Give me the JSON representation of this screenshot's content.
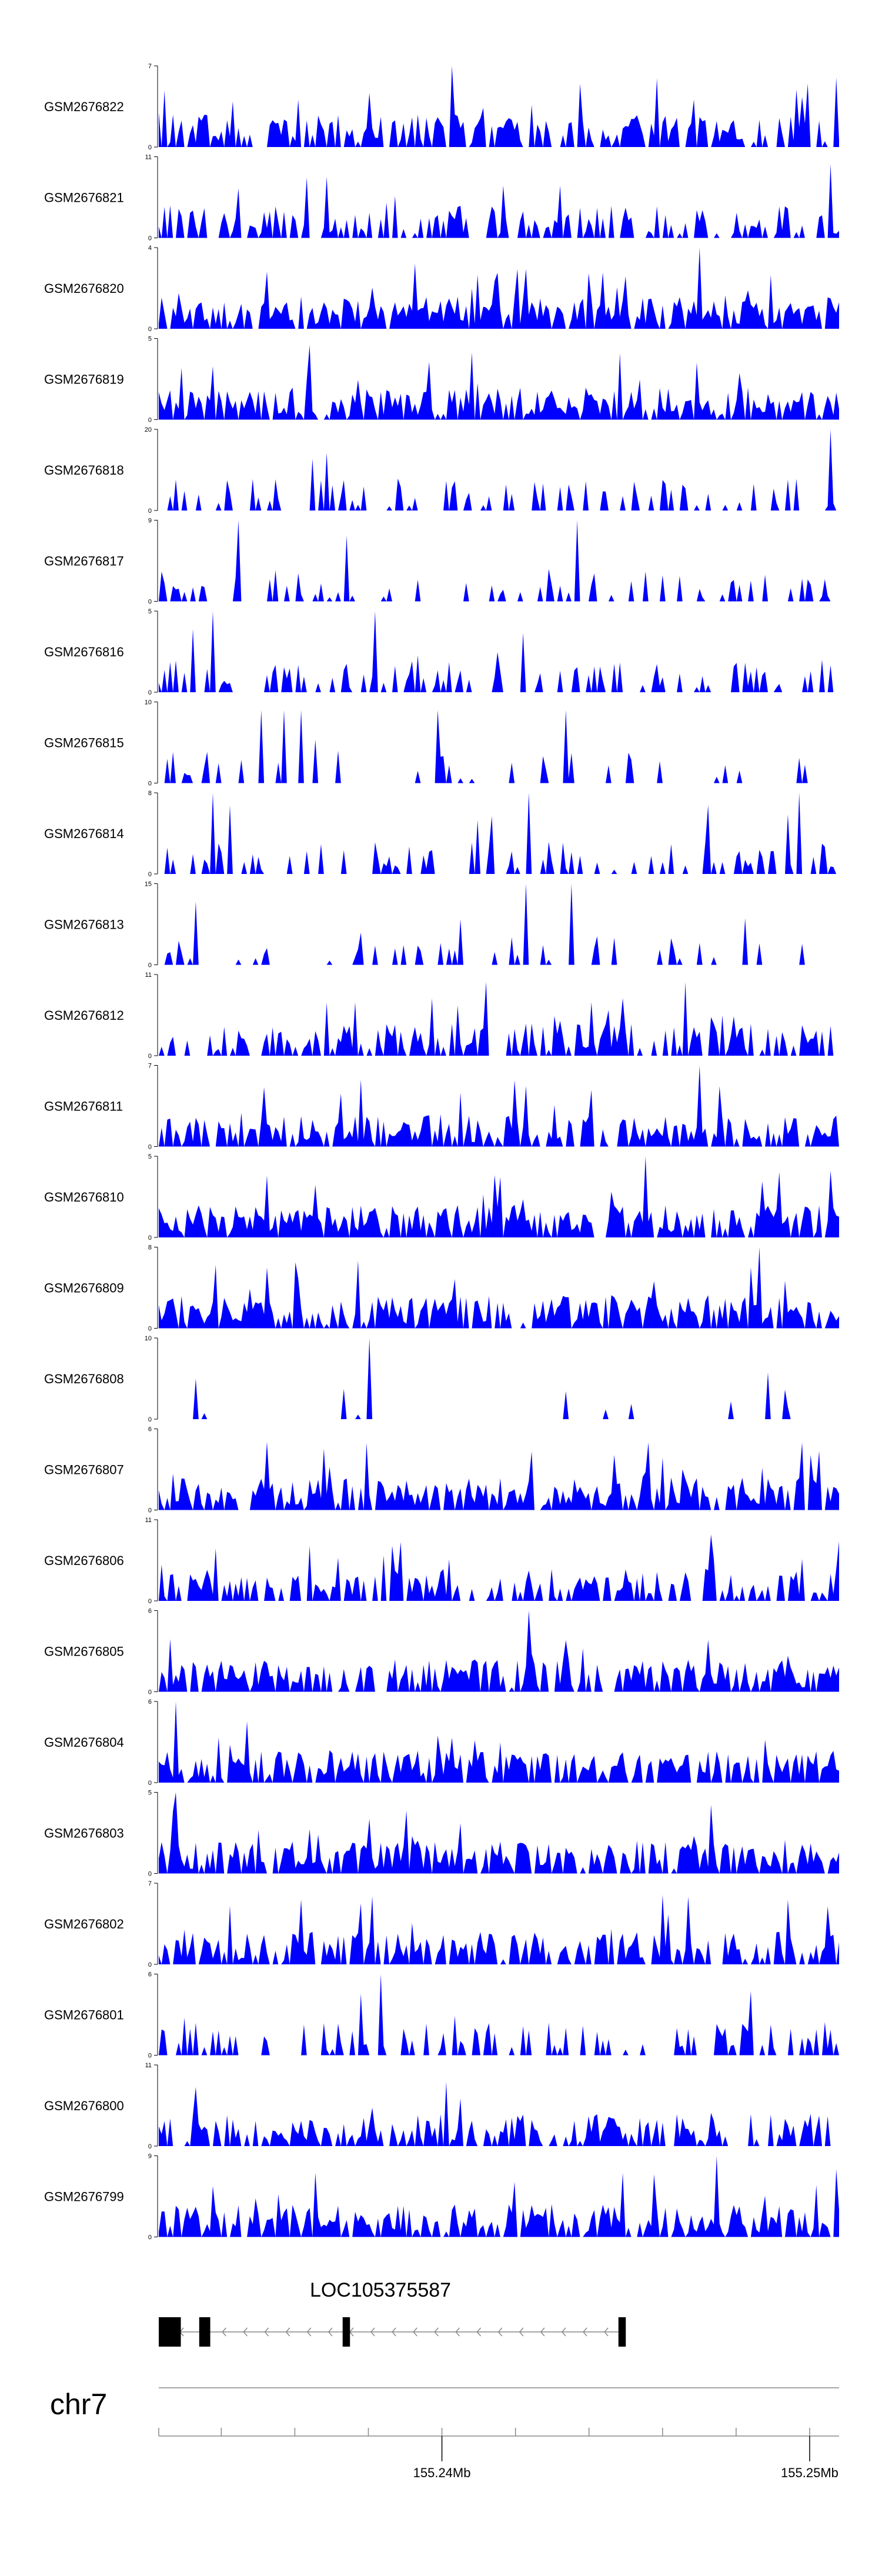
{
  "chart_data": {
    "type": "area",
    "fill_color": "#0000ff",
    "x_range_mb": [
      155.2323,
      155.2508
    ],
    "tracks": [
      {
        "name": "GSM2676822",
        "ylim": [
          0,
          7
        ],
        "seed": 22,
        "density": 0.62,
        "peaks": [
          [
            155.2403,
            7
          ],
          [
            155.2507,
            6
          ]
        ]
      },
      {
        "name": "GSM2676821",
        "ylim": [
          0,
          11
        ],
        "seed": 21,
        "density": 0.55,
        "peaks": [
          [
            155.2506,
            10
          ]
        ]
      },
      {
        "name": "GSM2676820",
        "ylim": [
          0,
          4
        ],
        "seed": 20,
        "density": 0.85,
        "peaks": [
          [
            155.247,
            4
          ]
        ]
      },
      {
        "name": "GSM2676819",
        "ylim": [
          0,
          5
        ],
        "seed": 19,
        "density": 0.8,
        "peaks": [
          [
            155.2364,
            4.6
          ]
        ]
      },
      {
        "name": "GSM2676818",
        "ylim": [
          0,
          20
        ],
        "seed": 18,
        "density": 0.28,
        "peaks": [
          [
            155.2506,
            20
          ]
        ]
      },
      {
        "name": "GSM2676817",
        "ylim": [
          0,
          9
        ],
        "seed": 17,
        "density": 0.22,
        "peaks": [
          [
            155.2345,
            9
          ],
          [
            155.2437,
            9
          ]
        ]
      },
      {
        "name": "GSM2676816",
        "ylim": [
          0,
          5
        ],
        "seed": 16,
        "density": 0.3,
        "peaks": [
          [
            155.2338,
            5
          ],
          [
            155.2382,
            5
          ]
        ]
      },
      {
        "name": "GSM2676815",
        "ylim": [
          0,
          10
        ],
        "seed": 15,
        "density": 0.12,
        "peaks": [
          [
            155.2351,
            9
          ],
          [
            155.2357,
            9
          ],
          [
            155.2362,
            9
          ],
          [
            155.2399,
            9
          ],
          [
            155.2434,
            9
          ]
        ]
      },
      {
        "name": "GSM2676814",
        "ylim": [
          0,
          8
        ],
        "seed": 14,
        "density": 0.26,
        "peaks": [
          [
            155.2338,
            8
          ],
          [
            155.2424,
            8
          ],
          [
            155.2497,
            8
          ]
        ]
      },
      {
        "name": "GSM2676813",
        "ylim": [
          0,
          15
        ],
        "seed": 13,
        "density": 0.14,
        "peaks": [
          [
            155.2423,
            15
          ],
          [
            155.2435,
            15
          ]
        ]
      },
      {
        "name": "GSM2676812",
        "ylim": [
          0,
          11
        ],
        "seed": 12,
        "density": 0.55,
        "peaks": [
          [
            155.2412,
            10
          ],
          [
            155.2466,
            10
          ]
        ]
      },
      {
        "name": "GSM2676811",
        "ylim": [
          0,
          7
        ],
        "seed": 11,
        "density": 0.75,
        "peaks": [
          [
            155.247,
            7
          ]
        ]
      },
      {
        "name": "GSM2676810",
        "ylim": [
          0,
          5
        ],
        "seed": 10,
        "density": 0.8,
        "peaks": [
          [
            155.2455,
            5
          ]
        ]
      },
      {
        "name": "GSM2676809",
        "ylim": [
          0,
          8
        ],
        "seed": 9,
        "density": 0.8,
        "peaks": [
          [
            155.2486,
            8
          ]
        ]
      },
      {
        "name": "GSM2676808",
        "ylim": [
          0,
          10
        ],
        "seed": 8,
        "density": 0.1,
        "peaks": [
          [
            155.2333,
            5
          ],
          [
            155.238,
            10
          ]
        ]
      },
      {
        "name": "GSM2676807",
        "ylim": [
          0,
          6
        ],
        "seed": 7,
        "density": 0.75,
        "peaks": [
          [
            155.2498,
            5
          ]
        ]
      },
      {
        "name": "GSM2676806",
        "ylim": [
          0,
          11
        ],
        "seed": 6,
        "density": 0.6,
        "peaks": [
          [
            155.2473,
            9
          ]
        ]
      },
      {
        "name": "GSM2676805",
        "ylim": [
          0,
          6
        ],
        "seed": 5,
        "density": 0.75,
        "peaks": [
          [
            155.2424,
            6
          ]
        ]
      },
      {
        "name": "GSM2676804",
        "ylim": [
          0,
          6
        ],
        "seed": 4,
        "density": 0.75,
        "peaks": [
          [
            155.2328,
            6
          ]
        ]
      },
      {
        "name": "GSM2676803",
        "ylim": [
          0,
          5
        ],
        "seed": 3,
        "density": 0.8,
        "peaks": [
          [
            155.2328,
            5
          ]
        ]
      },
      {
        "name": "GSM2676802",
        "ylim": [
          0,
          7
        ],
        "seed": 2,
        "density": 0.65,
        "peaks": [
          [
            155.246,
            6
          ]
        ]
      },
      {
        "name": "GSM2676801",
        "ylim": [
          0,
          6
        ],
        "seed": 1,
        "density": 0.35,
        "peaks": [
          [
            155.2383,
            6
          ]
        ]
      },
      {
        "name": "GSM2676800",
        "ylim": [
          0,
          11
        ],
        "seed": 100,
        "density": 0.55,
        "peaks": [
          [
            155.2333,
            8
          ]
        ]
      },
      {
        "name": "GSM2676799",
        "ylim": [
          0,
          9
        ],
        "seed": 99,
        "density": 0.75,
        "peaks": [
          [
            155.2475,
            9
          ]
        ]
      }
    ],
    "gene": {
      "name": "LOC105375587",
      "strand": "-",
      "start_mb": 155.2323,
      "end_mb": 155.245,
      "exons": [
        [
          155.2323,
          155.2329
        ],
        [
          155.2334,
          155.2337
        ],
        [
          155.2373,
          155.2375
        ],
        [
          155.2448,
          155.245
        ]
      ]
    },
    "chromosome": "chr7",
    "axis_ticks_mb": [
      155.2323,
      155.234,
      155.236,
      155.238,
      155.24,
      155.242,
      155.244,
      155.246,
      155.248,
      155.25
    ],
    "axis_labels": [
      {
        "value": 155.24,
        "label": "155.24Mb"
      },
      {
        "value": 155.25,
        "label": "155.25Mb"
      }
    ]
  }
}
